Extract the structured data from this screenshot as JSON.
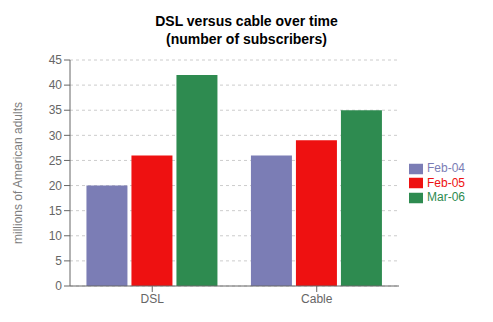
{
  "chart_data": {
    "type": "bar",
    "title": "DSL versus cable over time\n(number of subscribers)",
    "ylabel": "millions of American adults",
    "categories": [
      "DSL",
      "Cable"
    ],
    "series": [
      {
        "name": "Feb-04",
        "values": [
          20,
          26
        ],
        "color": "#7B7DB5"
      },
      {
        "name": "Feb-05",
        "values": [
          26,
          29
        ],
        "color": "#EE1111"
      },
      {
        "name": "Mar-06",
        "values": [
          42,
          35
        ],
        "color": "#2E8B50"
      }
    ],
    "ylim": [
      0,
      45
    ],
    "yticks": [
      0,
      5,
      10,
      15,
      20,
      25,
      30,
      35,
      40,
      45
    ],
    "grid": true,
    "legend": "right"
  }
}
